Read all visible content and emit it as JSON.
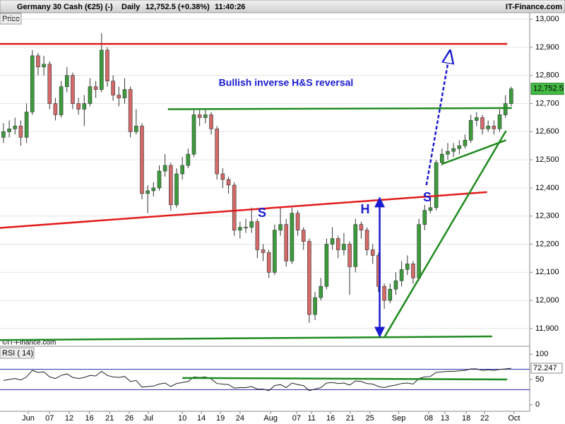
{
  "header": {
    "title": "Germany 30 Cash (€25) (-)",
    "period": "Daily",
    "quote": "12,752.5 (+0.38%)",
    "time": "11:40:26",
    "site": "IT-Finance.com",
    "price_tag": "Price",
    "copyright": "©IT-Finance.com"
  },
  "chart_data": [
    {
      "type": "candlestick",
      "up_color": "#3c9c3c",
      "down_color": "#d46a6a",
      "open": [
        12580,
        12600,
        12610,
        12620,
        12580,
        12670,
        12870,
        12830,
        12840,
        12700,
        12660,
        12760,
        12800,
        12700,
        12680,
        12700,
        12760,
        12750,
        12890,
        12780,
        12730,
        12720,
        12750,
        12600,
        12620,
        12380,
        12390,
        12400,
        12460,
        12480,
        12340,
        12450,
        12480,
        12520,
        12660,
        12650,
        12660,
        12610,
        12450,
        12430,
        12410,
        12250,
        12260,
        12260,
        12280,
        12180,
        12170,
        12100,
        12250,
        12270,
        12140,
        12310,
        12250,
        12210,
        11950,
        12010,
        12050,
        12200,
        12220,
        12180,
        12200,
        12120,
        12270,
        12250,
        12180,
        12160,
        12050,
        12000,
        12040,
        12070,
        12110,
        12130,
        12080,
        12270,
        12320,
        12330,
        12490,
        12520,
        12530,
        12540,
        12550,
        12570,
        12640,
        12650,
        12610,
        12620,
        12610,
        12660,
        12700
      ],
      "high": [
        12630,
        12640,
        12650,
        12640,
        12700,
        12890,
        12880,
        12870,
        12850,
        12720,
        12780,
        12830,
        12810,
        12720,
        12730,
        12790,
        12780,
        12950,
        12900,
        12800,
        12760,
        12790,
        12760,
        12680,
        12630,
        12410,
        12420,
        12480,
        12520,
        12490,
        12470,
        12510,
        12540,
        12680,
        12680,
        12680,
        12670,
        12620,
        12470,
        12440,
        12420,
        12280,
        12290,
        12330,
        12290,
        12200,
        12180,
        12270,
        12330,
        12290,
        12330,
        12320,
        12260,
        12220,
        12030,
        12080,
        12220,
        12260,
        12230,
        12240,
        12210,
        12290,
        12280,
        12260,
        12200,
        12170,
        12060,
        12060,
        12100,
        12140,
        12160,
        12140,
        12290,
        12340,
        12370,
        12500,
        12540,
        12560,
        12560,
        12570,
        12590,
        12660,
        12670,
        12660,
        12640,
        12640,
        12680,
        12730,
        12760
      ],
      "low": [
        12560,
        12580,
        12590,
        12550,
        12560,
        12660,
        12800,
        12800,
        12680,
        12640,
        12650,
        12740,
        12680,
        12660,
        12620,
        12690,
        12720,
        12740,
        12760,
        12710,
        12690,
        12700,
        12580,
        12590,
        12360,
        12310,
        12370,
        12390,
        12440,
        12320,
        12330,
        12430,
        12470,
        12510,
        12620,
        12630,
        12590,
        12430,
        12400,
        12380,
        12230,
        12220,
        12240,
        12240,
        12150,
        12140,
        12080,
        12090,
        12230,
        12120,
        12130,
        12230,
        12180,
        11920,
        11930,
        12000,
        12040,
        12180,
        12150,
        12160,
        12020,
        12100,
        12220,
        12160,
        12130,
        12030,
        11970,
        11990,
        12020,
        12050,
        12090,
        12060,
        12070,
        12250,
        12310,
        12320,
        12480,
        12500,
        12510,
        12520,
        12540,
        12560,
        12620,
        12590,
        12600,
        12590,
        12600,
        12650,
        12690
      ],
      "close": [
        12600,
        12610,
        12620,
        12580,
        12670,
        12870,
        12830,
        12840,
        12700,
        12660,
        12760,
        12800,
        12700,
        12680,
        12700,
        12760,
        12750,
        12890,
        12780,
        12730,
        12720,
        12750,
        12600,
        12620,
        12380,
        12390,
        12400,
        12460,
        12480,
        12340,
        12450,
        12480,
        12520,
        12660,
        12650,
        12660,
        12610,
        12450,
        12430,
        12410,
        12250,
        12260,
        12260,
        12280,
        12180,
        12170,
        12100,
        12250,
        12270,
        12140,
        12310,
        12250,
        12210,
        11950,
        12010,
        12050,
        12200,
        12220,
        12180,
        12200,
        12120,
        12270,
        12250,
        12180,
        12160,
        12050,
        12000,
        12040,
        12070,
        12110,
        12130,
        12080,
        12270,
        12320,
        12330,
        12490,
        12520,
        12530,
        12540,
        12550,
        12570,
        12640,
        12650,
        12610,
        12620,
        12610,
        12660,
        12700,
        12752.5
      ],
      "last_label": "12,752.5",
      "xlim": [
        -0.6,
        91.2
      ],
      "ylim": [
        11842,
        13023
      ],
      "yticks": [
        {
          "value": 11900,
          "label": "11,900"
        },
        {
          "value": 12000,
          "label": "12,000"
        },
        {
          "value": 12100,
          "label": "12,100"
        },
        {
          "value": 12200,
          "label": "12,200"
        },
        {
          "value": 12300,
          "label": "12,300"
        },
        {
          "value": 12400,
          "label": "12,400"
        },
        {
          "value": 12500,
          "label": "12,500"
        },
        {
          "value": 12600,
          "label": "12,600"
        },
        {
          "value": 12700,
          "label": "12,700"
        },
        {
          "value": 12800,
          "label": "12,800"
        },
        {
          "value": 12900,
          "label": "12,900"
        },
        {
          "value": 13000,
          "label": "13,000"
        }
      ],
      "xticks": [
        {
          "value": 4.3,
          "label": "Jun"
        },
        {
          "value": 8,
          "label": "07"
        },
        {
          "value": 11.4,
          "label": "12"
        },
        {
          "value": 14.9,
          "label": "16"
        },
        {
          "value": 18.4,
          "label": "21"
        },
        {
          "value": 21.8,
          "label": "26"
        },
        {
          "value": 25.1,
          "label": "Jul"
        },
        {
          "value": 31,
          "label": "10"
        },
        {
          "value": 34.3,
          "label": "14"
        },
        {
          "value": 37.6,
          "label": "19"
        },
        {
          "value": 41,
          "label": "24"
        },
        {
          "value": 46.3,
          "label": "Aug"
        },
        {
          "value": 50.8,
          "label": "07"
        },
        {
          "value": 53.4,
          "label": "11"
        },
        {
          "value": 56.7,
          "label": "16"
        },
        {
          "value": 60.1,
          "label": "21"
        },
        {
          "value": 63.5,
          "label": "25"
        },
        {
          "value": 68.5,
          "label": "Sep"
        },
        {
          "value": 73.7,
          "label": "08"
        },
        {
          "value": 76.5,
          "label": "13"
        },
        {
          "value": 80.2,
          "label": "18"
        },
        {
          "value": 83.4,
          "label": "22"
        },
        {
          "value": 88.5,
          "label": "Oct"
        }
      ],
      "grid": true,
      "trendlines": [
        {
          "from": [
            -0.6,
            12912
          ],
          "to": [
            87.3,
            12912
          ],
          "color": "#e21b1b"
        },
        {
          "from": [
            28.5,
            12680
          ],
          "to": [
            88.1,
            12684
          ],
          "color": "#1f8a1f"
        },
        {
          "from": [
            -0.6,
            12258
          ],
          "to": [
            83.8,
            12385
          ],
          "color": "#e21b1b"
        },
        {
          "from": [
            -0.6,
            11859
          ],
          "to": [
            84.7,
            11872
          ],
          "color": "#1f8a1f"
        },
        {
          "from": [
            65.2,
            11872
          ],
          "to": [
            65.2,
            12365
          ],
          "color": "#1a1ad0",
          "arrow": "both"
        },
        {
          "from": [
            73.3,
            12410
          ],
          "to": [
            77.4,
            12887
          ],
          "color": "#1a1ad0",
          "dashed": true,
          "arrow": "end"
        },
        {
          "from": [
            66.1,
            11872
          ],
          "to": [
            87.1,
            12603
          ],
          "color": "#1f8a1f"
        },
        {
          "from": [
            76,
            12485
          ],
          "to": [
            87.1,
            12570
          ],
          "color": "#1f8a1f"
        }
      ],
      "annotations": [
        {
          "text": "Bullish inverse H&S reversal",
          "color": "#1a1ad0"
        },
        {
          "text": "S",
          "color": "#1a1ad0"
        },
        {
          "text": "H",
          "color": "#1a1ad0"
        },
        {
          "text": "S",
          "color": "#1a1ad0"
        }
      ]
    },
    {
      "type": "line",
      "title": "RSI ( 14)",
      "ylim": [
        -10,
        110
      ],
      "yticks": [
        0,
        50,
        100
      ],
      "bands": [
        70,
        30
      ],
      "series": [
        {
          "name": "RSI",
          "color": "#222222",
          "values": [
            48,
            50,
            52,
            49,
            55,
            68,
            64,
            65,
            55,
            52,
            58,
            61,
            54,
            52,
            54,
            58,
            57,
            66,
            58,
            55,
            54,
            56,
            46,
            48,
            35,
            36,
            37,
            41,
            43,
            36,
            42,
            44,
            46,
            55,
            54,
            55,
            51,
            42,
            41,
            40,
            33,
            34,
            34,
            36,
            31,
            31,
            28,
            38,
            40,
            34,
            43,
            40,
            38,
            28,
            31,
            34,
            43,
            44,
            42,
            43,
            39,
            47,
            46,
            42,
            41,
            36,
            34,
            37,
            39,
            42,
            43,
            41,
            52,
            55,
            56,
            64,
            65,
            66,
            66,
            67,
            68,
            71,
            71,
            68,
            69,
            68,
            70,
            71,
            72.247
          ]
        }
      ],
      "trendlines": [
        {
          "from": [
            31,
            53
          ],
          "to": [
            87.3,
            50
          ],
          "color": "#1f8a1f"
        }
      ]
    }
  ]
}
